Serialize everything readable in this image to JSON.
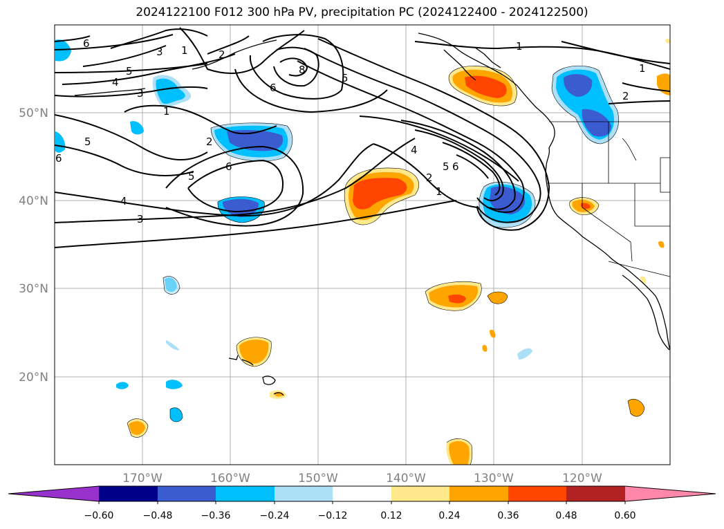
{
  "title": "2024122100 F012 300 hPa PV, precipitation PC (2024122400 - 2024122500)",
  "map": {
    "lon_ticks": [
      "170°W",
      "160°W",
      "150°W",
      "140°W",
      "130°W",
      "120°W"
    ],
    "lat_ticks": [
      "50°N",
      "40°N",
      "30°N",
      "20°N"
    ],
    "contour_labels": [
      "6",
      "3",
      "1",
      "2",
      "5",
      "4",
      "3",
      "1",
      "8",
      "6",
      "5",
      "1",
      "1",
      "2",
      "6",
      "5",
      "2",
      "5",
      "6",
      "4",
      "3",
      "4",
      "5",
      "6",
      "2",
      "1"
    ]
  },
  "colorbar": {
    "ticks": [
      "−0.60",
      "−0.48",
      "−0.36",
      "−0.24",
      "−0.12",
      "0.12",
      "0.24",
      "0.36",
      "0.48",
      "0.60"
    ],
    "colors": [
      "#9932cc",
      "#00008b",
      "#3b5bd0",
      "#00bfff",
      "#ade0f7",
      "#ffffff",
      "#ffe98a",
      "#ffa500",
      "#ff4500",
      "#b22222",
      "#ff88aa"
    ]
  }
}
